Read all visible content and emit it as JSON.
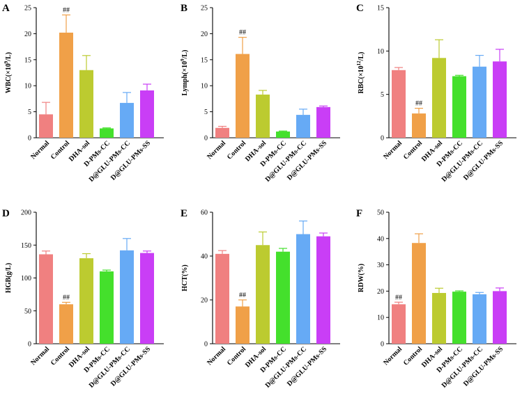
{
  "colors": [
    "#f08080",
    "#f0a048",
    "#bccb30",
    "#44e02c",
    "#66aaf5",
    "#c93ef6"
  ],
  "chart_data": [
    {
      "type": "bar",
      "panel": "A",
      "ylabel": "WBC(×10⁹/L)",
      "ylim": [
        0,
        25
      ],
      "yticks": [
        0,
        5,
        10,
        15,
        20,
        25
      ],
      "categories": [
        "Normal",
        "Control",
        "DHA-sol",
        "D-PMs-CC",
        "D@GLU-PMs-CC",
        "D@GLU-PMs-SS"
      ],
      "values": [
        4.5,
        20.2,
        13.0,
        1.8,
        6.7,
        9.1
      ],
      "errors": [
        2.3,
        3.4,
        2.8,
        0.1,
        2.0,
        1.2
      ],
      "annotations": [
        "",
        "##",
        "",
        "",
        "",
        ""
      ]
    },
    {
      "type": "bar",
      "panel": "B",
      "ylabel": "Lymph(×10⁹/L)",
      "ylim": [
        0,
        25
      ],
      "yticks": [
        0,
        5,
        10,
        15,
        20,
        25
      ],
      "categories": [
        "Normal",
        "Control",
        "DHA-sol",
        "D-PMs-CC",
        "D@GLU-PMs-CC",
        "D@GLU-PMs-SS"
      ],
      "values": [
        1.9,
        16.1,
        8.3,
        1.2,
        4.4,
        5.9
      ],
      "errors": [
        0.3,
        3.2,
        0.8,
        0.1,
        1.1,
        0.2
      ],
      "annotations": [
        "",
        "##",
        "",
        "",
        "",
        ""
      ]
    },
    {
      "type": "bar",
      "panel": "C",
      "ylabel": "RBC(×10¹²/L)",
      "ylim": [
        0,
        15
      ],
      "yticks": [
        0,
        5,
        10,
        15
      ],
      "categories": [
        "Normal",
        "Control",
        "DHA-sol",
        "D-PMs-CC",
        "D@GLU-PMs-CC",
        "D@GLU-PMs-SS"
      ],
      "values": [
        7.8,
        2.8,
        9.2,
        7.1,
        8.2,
        8.8
      ],
      "errors": [
        0.3,
        0.6,
        2.1,
        0.1,
        1.3,
        1.4
      ],
      "annotations": [
        "",
        "##",
        "",
        "",
        "",
        ""
      ]
    },
    {
      "type": "bar",
      "panel": "D",
      "ylabel": "HGB(g/L)",
      "ylim": [
        0,
        200
      ],
      "yticks": [
        0,
        50,
        100,
        150,
        200
      ],
      "categories": [
        "Normal",
        "Control",
        "DHA-sol",
        "D-PMs-CC",
        "D@GLU-PMs-CC",
        "D@GLU-PMs-SS"
      ],
      "values": [
        136,
        60,
        130,
        110,
        142,
        138
      ],
      "errors": [
        5,
        3,
        7,
        2,
        18,
        3
      ],
      "annotations": [
        "",
        "##",
        "",
        "",
        "",
        ""
      ]
    },
    {
      "type": "bar",
      "panel": "E",
      "ylabel": "HCT(%)",
      "ylim": [
        0,
        60
      ],
      "yticks": [
        0,
        20,
        40,
        60
      ],
      "categories": [
        "Normal",
        "Control",
        "DHA-sol",
        "D-PMs-CC",
        "D@GLU-PMs-CC",
        "D@GLU-PMs-SS"
      ],
      "values": [
        41,
        17,
        45,
        42,
        50,
        49
      ],
      "errors": [
        1.5,
        3,
        6,
        1.5,
        6,
        1.5
      ],
      "annotations": [
        "",
        "##",
        "",
        "",
        "",
        ""
      ]
    },
    {
      "type": "bar",
      "panel": "F",
      "ylabel": "RDW(%)",
      "ylim": [
        0,
        50
      ],
      "yticks": [
        0,
        10,
        20,
        30,
        40,
        50
      ],
      "categories": [
        "Normal",
        "Control",
        "DHA-sol",
        "D-PMs-CC",
        "D@GLU-PMs-CC",
        "D@GLU-PMs-SS"
      ],
      "values": [
        15,
        38.3,
        19.3,
        19.8,
        18.8,
        20
      ],
      "errors": [
        0.8,
        3.5,
        1.8,
        0.3,
        0.7,
        1.2
      ],
      "annotations": [
        "##",
        "",
        "",
        "",
        "",
        ""
      ]
    }
  ]
}
